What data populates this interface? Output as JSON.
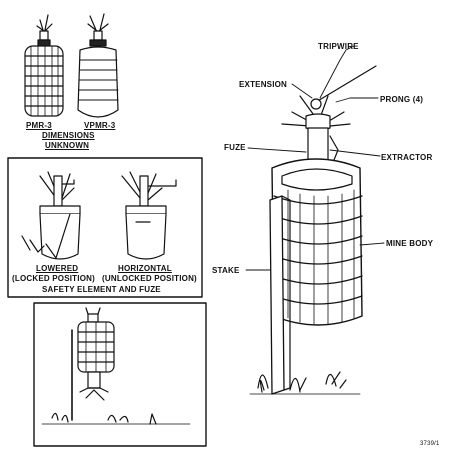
{
  "labels": {
    "pmr3": "PMR-3",
    "vpmr3": "VPMR-3",
    "dimensions": "DIMENSIONS",
    "unknown": "UNKNOWN",
    "lowered": "LOWERED",
    "locked_position": "(LOCKED POSITION)",
    "horizontal": "HORIZONTAL",
    "unlocked_position": "(UNLOCKED POSITION)",
    "safety_element_and_fuze": "SAFETY ELEMENT AND FUZE",
    "tripwire": "TRIPWIRE",
    "extension": "EXTENSION",
    "prong": "PRONG (4)",
    "fuze": "FUZE",
    "extractor": "EXTRACTOR",
    "mine_body": "MINE BODY",
    "stake": "STAKE",
    "figure_number": "3739/1"
  }
}
